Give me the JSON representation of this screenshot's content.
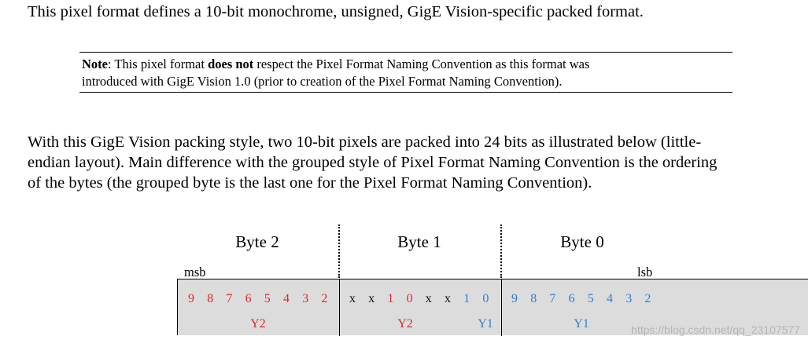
{
  "intro": "This pixel format defines a 10-bit monochrome, unsigned, GigE Vision-specific packed format.",
  "note": {
    "label": "Note",
    "text_before_bold": ": This pixel format ",
    "bold": "does not",
    "text_after_bold": " respect the Pixel Format Naming Convention as this format was",
    "line2": "introduced with GigE Vision 1.0 (prior to creation of the Pixel Format Naming Convention)."
  },
  "paragraph": {
    "line1": "With this GigE Vision packing style, two 10-bit pixels are packed into 24 bits as illustrated below (little-",
    "line2": "endian layout). Main difference with the grouped style of Pixel Format Naming Convention is the ordering",
    "line3": "of the bytes (the grouped byte is the last one for the Pixel Format Naming Convention)."
  },
  "diagram": {
    "msb": "msb",
    "lsb": "lsb",
    "colors": {
      "y2": "#e0262e",
      "y1": "#2f7fd4",
      "unused": "#111111"
    },
    "bytes": [
      {
        "name": "Byte 2",
        "bits": [
          {
            "t": "9",
            "c": "y2"
          },
          {
            "t": "8",
            "c": "y2"
          },
          {
            "t": "7",
            "c": "y2"
          },
          {
            "t": "6",
            "c": "y2"
          },
          {
            "t": "5",
            "c": "y2"
          },
          {
            "t": "4",
            "c": "y2"
          },
          {
            "t": "3",
            "c": "y2"
          },
          {
            "t": "2",
            "c": "y2"
          }
        ],
        "labels": [
          {
            "t": "Y2",
            "c": "y2"
          }
        ]
      },
      {
        "name": "Byte 1",
        "bits": [
          {
            "t": "x",
            "c": "unused"
          },
          {
            "t": "x",
            "c": "unused"
          },
          {
            "t": "1",
            "c": "y2"
          },
          {
            "t": "0",
            "c": "y2"
          },
          {
            "t": "x",
            "c": "unused"
          },
          {
            "t": "x",
            "c": "unused"
          },
          {
            "t": "1",
            "c": "y1"
          },
          {
            "t": "0",
            "c": "y1"
          }
        ],
        "labels": [
          {
            "t": "Y2",
            "c": "y2"
          },
          {
            "t": "Y1",
            "c": "y1"
          }
        ]
      },
      {
        "name": "Byte 0",
        "bits": [
          {
            "t": "9",
            "c": "y1"
          },
          {
            "t": "8",
            "c": "y1"
          },
          {
            "t": "7",
            "c": "y1"
          },
          {
            "t": "6",
            "c": "y1"
          },
          {
            "t": "5",
            "c": "y1"
          },
          {
            "t": "4",
            "c": "y1"
          },
          {
            "t": "3",
            "c": "y1"
          },
          {
            "t": "2",
            "c": "y1"
          }
        ],
        "labels": [
          {
            "t": "Y1",
            "c": "y1"
          }
        ]
      }
    ]
  },
  "watermark": "https://blog.csdn.net/qq_23107577"
}
